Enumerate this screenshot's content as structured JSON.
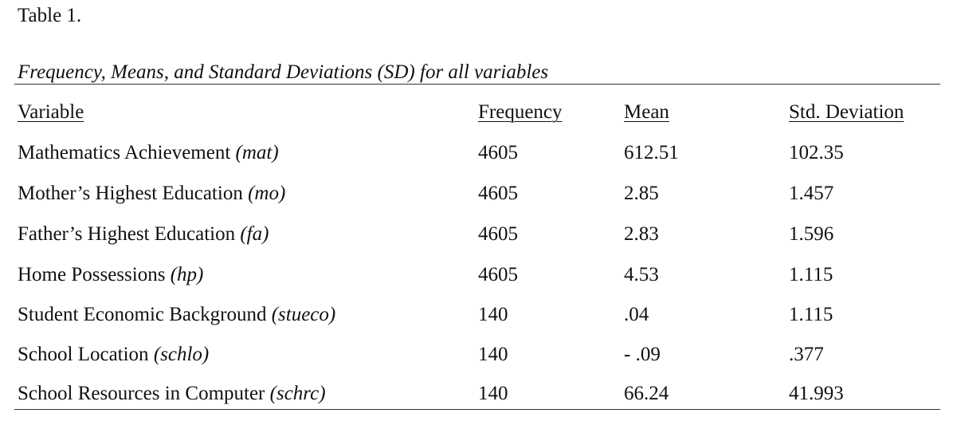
{
  "table_label": "Table 1.",
  "caption": "Frequency, Means, and Standard Deviations (SD) for all variables",
  "columns": [
    "Variable",
    "Frequency",
    "Mean",
    "Std. Deviation"
  ],
  "rows": [
    {
      "variable": "Mathematics Achievement",
      "abbr": "(mat)",
      "frequency": "4605",
      "mean": "612.51",
      "sd": "102.35"
    },
    {
      "variable": "Mother’s Highest Education",
      "abbr": "(mo)",
      "frequency": "4605",
      "mean": "2.85",
      "sd": "1.457"
    },
    {
      "variable": "Father’s Highest Education",
      "abbr": "(fa)",
      "frequency": "4605",
      "mean": "2.83",
      "sd": "1.596"
    },
    {
      "variable": "Home Possessions",
      "abbr": "(hp)",
      "frequency": "4605",
      "mean": "4.53",
      "sd": "1.115"
    },
    {
      "variable": "Student Economic Background",
      "abbr": "(stueco)",
      "frequency": "140",
      "mean": ".04",
      "sd": "1.115"
    },
    {
      "variable": "School Location",
      "abbr": "(schlo)",
      "frequency": "140",
      "mean": "- .09",
      "sd": ".377"
    },
    {
      "variable": "School Resources in Computer",
      "abbr": "(schrc)",
      "frequency": "140",
      "mean": "66.24",
      "sd": "41.993"
    }
  ]
}
